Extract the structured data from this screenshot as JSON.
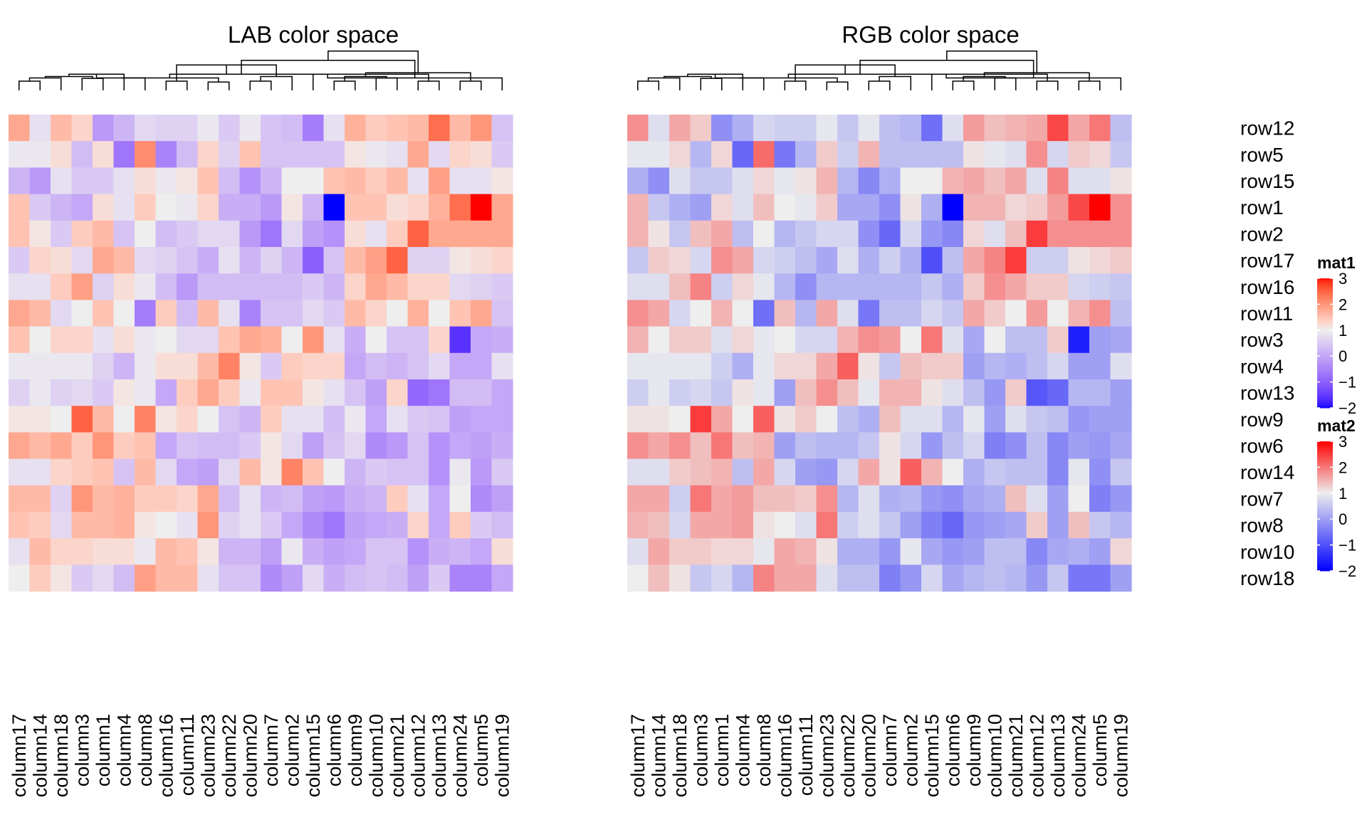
{
  "chart_data": {
    "type": "heatmap",
    "rows": [
      "row12",
      "row5",
      "row15",
      "row1",
      "row2",
      "row17",
      "row16",
      "row11",
      "row3",
      "row4",
      "row13",
      "row9",
      "row6",
      "row14",
      "row7",
      "row8",
      "row10",
      "row18"
    ],
    "columns": [
      "column17",
      "column14",
      "column18",
      "column3",
      "column1",
      "column4",
      "column8",
      "column16",
      "column11",
      "column23",
      "column22",
      "column20",
      "column7",
      "column2",
      "column15",
      "column6",
      "column9",
      "column10",
      "column21",
      "column12",
      "column13",
      "column24",
      "column5",
      "column19"
    ],
    "values": [
      [
        1.8,
        0.8,
        1.6,
        1.3,
        -0.2,
        0.2,
        0.7,
        0.6,
        0.6,
        0.9,
        0.5,
        0.9,
        0.4,
        0.3,
        -0.6,
        0.8,
        1.7,
        1.4,
        1.5,
        1.6,
        2.4,
        1.6,
        2.0,
        0.4
      ],
      [
        0.9,
        0.9,
        1.2,
        0.3,
        1.2,
        -0.7,
        2.1,
        -0.5,
        0.3,
        1.3,
        0.6,
        1.5,
        0.4,
        0.4,
        0.4,
        0.4,
        1.1,
        0.9,
        0.8,
        1.8,
        0.7,
        1.3,
        1.2,
        0.5
      ],
      [
        0.2,
        -0.2,
        0.8,
        0.5,
        0.5,
        0.8,
        1.2,
        0.9,
        1.1,
        1.5,
        0.3,
        -0.3,
        0.2,
        1.0,
        1.0,
        1.5,
        1.6,
        1.4,
        1.6,
        0.8,
        1.9,
        0.8,
        0.8,
        1.1
      ],
      [
        1.5,
        0.5,
        0.2,
        0.0,
        1.2,
        0.8,
        1.4,
        1.0,
        0.9,
        1.3,
        0.1,
        0.1,
        -0.2,
        1.1,
        0.2,
        -2.0,
        1.5,
        1.5,
        1.2,
        1.3,
        1.7,
        2.4,
        3.0,
        1.8
      ],
      [
        1.5,
        1.1,
        0.5,
        1.4,
        1.6,
        0.4,
        1.0,
        0.3,
        0.5,
        0.7,
        0.7,
        -0.2,
        -0.7,
        0.7,
        -0.1,
        -0.3,
        1.2,
        0.8,
        1.4,
        2.5,
        1.8,
        1.8,
        1.8,
        1.8
      ],
      [
        0.5,
        1.3,
        1.2,
        0.7,
        1.8,
        1.6,
        0.7,
        0.6,
        0.4,
        0.1,
        0.8,
        0.2,
        0.6,
        0.2,
        -1.0,
        0.4,
        1.6,
        1.9,
        2.5,
        0.6,
        0.6,
        1.1,
        1.2,
        1.3
      ],
      [
        0.8,
        0.8,
        1.4,
        1.9,
        0.6,
        1.2,
        0.9,
        0.3,
        -0.2,
        0.3,
        0.3,
        0.3,
        0.3,
        0.3,
        0.5,
        0.2,
        1.3,
        1.8,
        1.6,
        1.3,
        1.3,
        0.7,
        0.6,
        0.5
      ],
      [
        1.8,
        1.6,
        0.7,
        1.0,
        1.5,
        1.0,
        -0.6,
        1.4,
        0.3,
        1.6,
        0.8,
        -0.5,
        0.4,
        0.4,
        0.7,
        0.5,
        1.6,
        1.3,
        1.0,
        1.7,
        1.0,
        1.5,
        1.8,
        0.4
      ],
      [
        1.5,
        1.0,
        1.3,
        1.3,
        0.8,
        1.2,
        0.9,
        1.0,
        0.7,
        0.7,
        1.5,
        1.8,
        1.7,
        1.0,
        2.0,
        0.8,
        0.1,
        1.0,
        0.4,
        0.4,
        1.3,
        -1.6,
        0.0,
        0.1
      ],
      [
        0.9,
        0.9,
        0.9,
        0.9,
        0.6,
        0.2,
        0.9,
        1.2,
        1.2,
        1.6,
        2.2,
        1.1,
        0.5,
        1.4,
        1.3,
        1.3,
        0.0,
        0.3,
        0.2,
        0.4,
        0.7,
        0.0,
        0.0,
        0.8
      ],
      [
        0.6,
        0.9,
        0.6,
        0.7,
        0.5,
        1.1,
        0.9,
        0.0,
        1.4,
        1.8,
        1.4,
        0.9,
        1.5,
        1.5,
        1.1,
        0.8,
        0.4,
        -0.1,
        1.3,
        -0.9,
        -0.7,
        0.3,
        0.3,
        0.0
      ],
      [
        1.1,
        1.1,
        1.0,
        2.5,
        1.6,
        1.0,
        2.2,
        1.1,
        1.3,
        1.0,
        0.4,
        0.2,
        1.4,
        0.8,
        0.8,
        0.3,
        0.9,
        0.0,
        0.8,
        0.5,
        0.4,
        -0.1,
        0.0,
        0.0
      ],
      [
        1.8,
        1.6,
        1.8,
        1.4,
        2.0,
        1.4,
        1.5,
        0.0,
        0.4,
        0.3,
        0.3,
        0.5,
        1.1,
        0.7,
        -0.1,
        0.4,
        0.7,
        -0.4,
        -0.2,
        0.4,
        -0.3,
        0.0,
        -0.1,
        0.1
      ],
      [
        0.8,
        0.8,
        1.3,
        1.4,
        1.5,
        0.4,
        1.6,
        0.7,
        0.0,
        -0.1,
        0.7,
        1.6,
        1.1,
        2.2,
        1.5,
        1.0,
        0.2,
        0.5,
        0.4,
        0.4,
        -0.3,
        0.9,
        -0.2,
        0.5
      ],
      [
        1.6,
        1.6,
        0.6,
        2.0,
        1.6,
        1.7,
        1.4,
        1.4,
        1.3,
        1.8,
        0.3,
        0.8,
        0.2,
        0.3,
        -0.1,
        -0.2,
        0.1,
        0.2,
        1.4,
        0.8,
        0.0,
        1.0,
        -0.4,
        -0.1
      ],
      [
        1.5,
        1.4,
        0.7,
        1.6,
        1.6,
        1.7,
        1.1,
        1.0,
        0.8,
        2.0,
        0.6,
        0.8,
        0.5,
        0.0,
        -0.4,
        -0.7,
        -0.1,
        0.0,
        0.1,
        1.3,
        0.0,
        1.4,
        0.5,
        0.3
      ],
      [
        0.8,
        1.6,
        1.3,
        1.3,
        1.2,
        1.2,
        0.9,
        1.6,
        1.5,
        1.1,
        0.2,
        0.2,
        -0.1,
        0.9,
        0.1,
        -0.1,
        0.0,
        0.4,
        0.4,
        -0.3,
        0.1,
        0.2,
        0.0,
        1.2
      ],
      [
        1.0,
        1.4,
        1.1,
        0.5,
        0.7,
        0.3,
        1.9,
        1.6,
        1.6,
        0.8,
        0.4,
        0.4,
        -0.4,
        -0.1,
        0.7,
        0.1,
        0.3,
        0.4,
        0.3,
        -0.1,
        0.5,
        -0.5,
        -0.5,
        0.0
      ]
    ],
    "panels": [
      {
        "title": "LAB color space",
        "legend": "mat1"
      },
      {
        "title": "RGB color space",
        "legend": "mat2"
      }
    ],
    "legend_ticks": [
      3,
      2,
      1,
      0,
      -1,
      -2
    ],
    "scale": {
      "min": -2,
      "mid": 1,
      "max": 3,
      "low": "#0000ff",
      "mid_color": "#eeeeee",
      "high": "#ff0000"
    }
  }
}
